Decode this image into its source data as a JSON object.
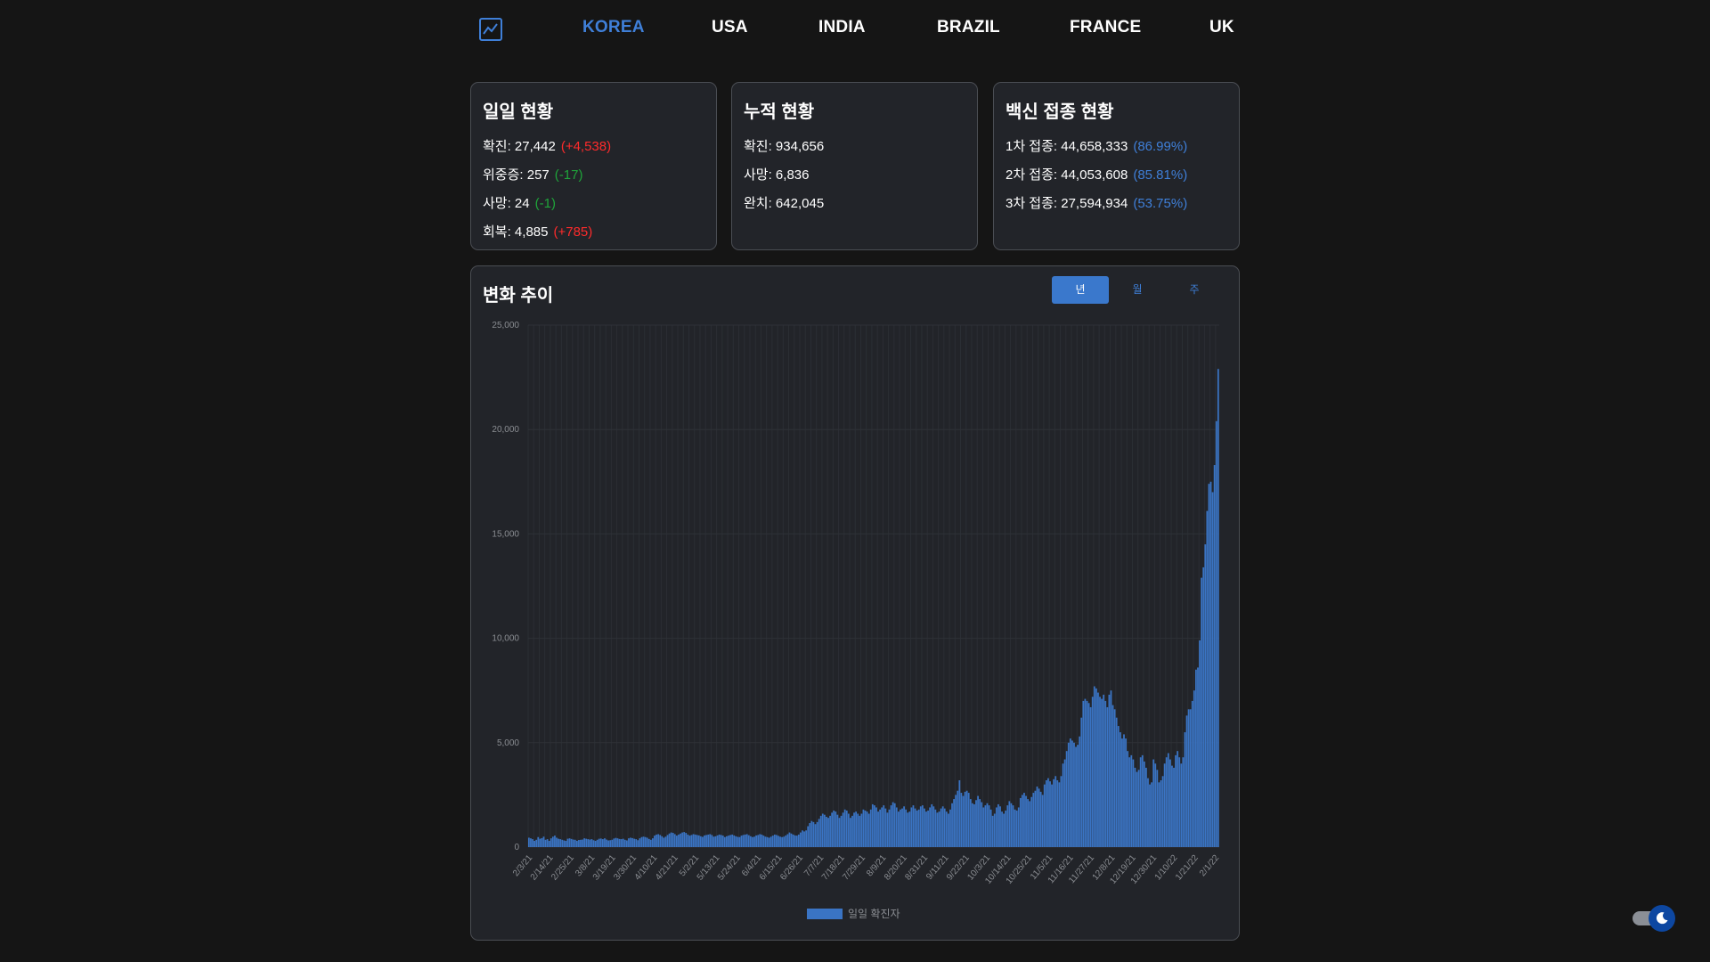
{
  "nav": {
    "items": [
      {
        "label": "KOREA",
        "active": true
      },
      {
        "label": "USA",
        "active": false
      },
      {
        "label": "INDIA",
        "active": false
      },
      {
        "label": "BRAZIL",
        "active": false
      },
      {
        "label": "FRANCE",
        "active": false
      },
      {
        "label": "UK",
        "active": false
      }
    ],
    "logo_icon": "chart-line-icon"
  },
  "daily": {
    "title": "일일 현황",
    "rows": [
      {
        "label": "확진: 27,442",
        "delta": "(+4,538)",
        "color": "red"
      },
      {
        "label": "위중증: 257",
        "delta": "(-17)",
        "color": "green"
      },
      {
        "label": "사망: 24",
        "delta": "(-1)",
        "color": "green"
      },
      {
        "label": "회복: 4,885",
        "delta": "(+785)",
        "color": "red"
      }
    ]
  },
  "cumulative": {
    "title": "누적 현황",
    "rows": [
      {
        "label": "확진: 934,656"
      },
      {
        "label": "사망: 6,836"
      },
      {
        "label": "완치: 642,045"
      }
    ]
  },
  "vaccine": {
    "title": "백신 접종 현황",
    "rows": [
      {
        "label": "1차 접종: 44,658,333",
        "delta": "(86.99%)",
        "color": "blue"
      },
      {
        "label": "2차 접종: 44,053,608",
        "delta": "(85.81%)",
        "color": "blue"
      },
      {
        "label": "3차 접종: 27,594,934",
        "delta": "(53.75%)",
        "color": "blue"
      }
    ]
  },
  "trend": {
    "title": "변화 추이",
    "tabs": [
      {
        "label": "년",
        "active": true
      },
      {
        "label": "월",
        "active": false
      },
      {
        "label": "주",
        "active": false
      }
    ]
  },
  "colors": {
    "accent": "#3f7fd8",
    "bar": "#3a74c4",
    "increase": "#ff2b2b",
    "decrease": "#1fa43a",
    "background": "#151515",
    "card": "#222429"
  },
  "toggle": {
    "icon": "moon-icon",
    "state": "dark"
  },
  "chart_data": {
    "type": "bar",
    "title": "",
    "xlabel": "",
    "ylabel": "",
    "ylim": [
      0,
      25000
    ],
    "yticks": [
      "0",
      "5,000",
      "10,000",
      "15,000",
      "20,000",
      "25,000"
    ],
    "xtick_labels": [
      "2/3/21",
      "2/14/21",
      "2/25/21",
      "3/8/21",
      "3/19/21",
      "3/30/21",
      "4/10/21",
      "4/21/21",
      "5/2/21",
      "5/13/21",
      "5/24/21",
      "6/4/21",
      "6/15/21",
      "6/26/21",
      "7/7/21",
      "7/18/21",
      "7/29/21",
      "8/9/21",
      "8/20/21",
      "8/31/21",
      "9/11/21",
      "9/22/21",
      "10/3/21",
      "10/14/21",
      "10/25/21",
      "11/5/21",
      "11/16/21",
      "11/27/21",
      "12/8/21",
      "12/19/21",
      "12/30/21",
      "1/10/22",
      "1/21/22",
      "2/1/22"
    ],
    "grid": true,
    "legend": "bottom-center",
    "series": [
      {
        "name": "일일 확진자",
        "values": [
          450,
          420,
          380,
          300,
          350,
          480,
          400,
          430,
          500,
          350,
          380,
          300,
          420,
          500,
          550,
          450,
          400,
          380,
          350,
          320,
          300,
          400,
          420,
          390,
          360,
          350,
          300,
          340,
          350,
          360,
          420,
          400,
          380,
          360,
          380,
          330,
          300,
          350,
          400,
          410,
          380,
          420,
          360,
          320,
          330,
          350,
          410,
          440,
          420,
          390,
          380,
          400,
          350,
          320,
          420,
          450,
          430,
          400,
          380,
          330,
          420,
          480,
          500,
          480,
          450,
          390,
          350,
          420,
          550,
          600,
          620,
          580,
          520,
          450,
          500,
          580,
          650,
          700,
          680,
          620,
          550,
          600,
          650,
          700,
          720,
          680,
          600,
          550,
          580,
          620,
          600,
          580,
          560,
          520,
          490,
          560,
          580,
          600,
          620,
          580,
          500,
          520,
          560,
          600,
          580,
          550,
          480,
          520,
          550,
          580,
          600,
          560,
          520,
          490,
          480,
          550,
          580,
          600,
          620,
          570,
          520,
          480,
          500,
          560,
          580,
          620,
          600,
          550,
          500,
          480,
          450,
          500,
          550,
          600,
          580,
          540,
          500,
          480,
          500,
          560,
          620,
          700,
          650,
          600,
          560,
          550,
          600,
          700,
          800,
          750,
          800,
          1000,
          1150,
          1250,
          1200,
          1100,
          1200,
          1350,
          1500,
          1600,
          1550,
          1450,
          1400,
          1500,
          1650,
          1750,
          1700,
          1550,
          1400,
          1500,
          1650,
          1800,
          1750,
          1600,
          1400,
          1500,
          1650,
          1700,
          1600,
          1500,
          1600,
          1800,
          1750,
          1700,
          1600,
          1800,
          2050,
          2000,
          1900,
          1700,
          1800,
          1900,
          2000,
          1850,
          1650,
          1800,
          2000,
          2150,
          2100,
          1900,
          1700,
          1800,
          1850,
          1950,
          1800,
          1650,
          1700,
          1900,
          2000,
          1850,
          1750,
          1800,
          1950,
          2000,
          1850,
          1700,
          1750,
          1900,
          2050,
          1950,
          1800,
          1650,
          1700,
          1850,
          1950,
          1850,
          1700,
          1600,
          1800,
          2100,
          2300,
          2500,
          2700,
          3200,
          2600,
          2450,
          2650,
          2700,
          2600,
          2300,
          2100,
          2050,
          2250,
          2450,
          2300,
          2150,
          1900,
          2000,
          2100,
          2000,
          1800,
          1500,
          1600,
          1900,
          2050,
          1950,
          1700,
          1600,
          1750,
          2000,
          2200,
          2100,
          2000,
          1800,
          1750,
          1900,
          2350,
          2500,
          2600,
          2450,
          2300,
          2200,
          2400,
          2600,
          2700,
          2900,
          2800,
          2650,
          2500,
          3000,
          3200,
          3300,
          3150,
          3000,
          3250,
          3400,
          3200,
          3100,
          3400,
          4000,
          4200,
          4600,
          5000,
          5200,
          5100,
          5000,
          4800,
          4900,
          5300,
          6200,
          7000,
          7100,
          7000,
          6900,
          6700,
          7200,
          7700,
          7600,
          7400,
          7200,
          7100,
          7300,
          7000,
          6700,
          7300,
          7500,
          6800,
          6600,
          6200,
          5800,
          5500,
          5200,
          5400,
          5200,
          4600,
          4300,
          4400,
          4200,
          3800,
          3600,
          3700,
          4300,
          4400,
          4100,
          3800,
          3300,
          3000,
          3100,
          4200,
          4000,
          3700,
          3100,
          3200,
          3400,
          4000,
          4300,
          4500,
          4200,
          3900,
          3800,
          4400,
          4600,
          4300,
          4000,
          4300,
          5500,
          6300,
          6600,
          6600,
          7000,
          7500,
          8500,
          8600,
          9900,
          12900,
          13400,
          14500,
          16100,
          17400,
          17500,
          17000,
          18300,
          20400,
          22900
        ]
      }
    ]
  }
}
